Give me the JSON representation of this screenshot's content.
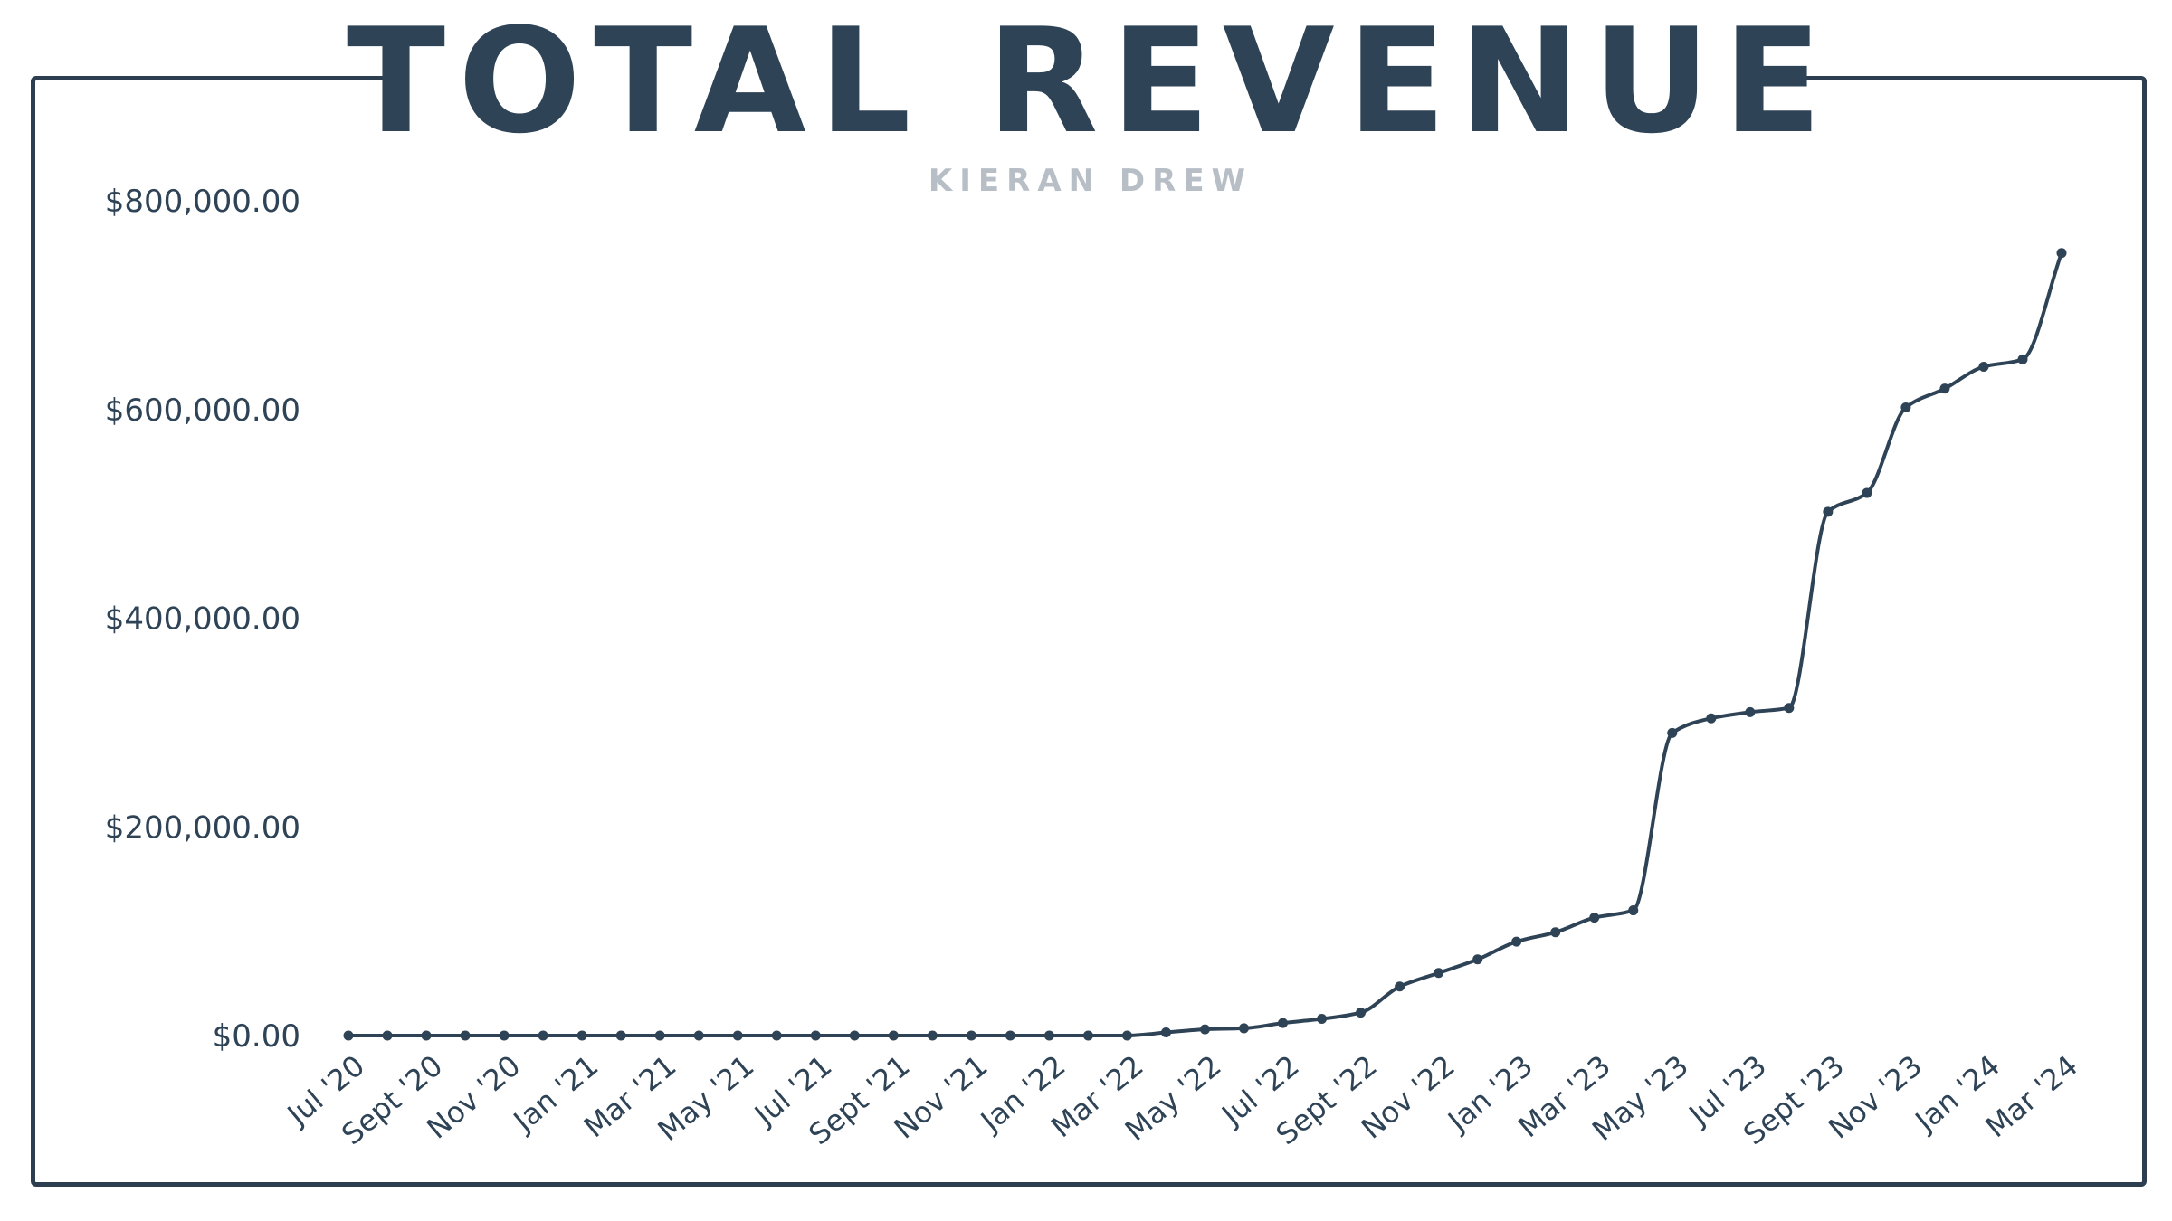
{
  "header": {
    "title": "TOTAL REVENUE",
    "subtitle": "KIERAN DREW"
  },
  "colors": {
    "line": "#2f4356",
    "frame": "#2c3e50",
    "subtitle": "#b7bec6"
  },
  "chart_data": {
    "type": "line",
    "title": "TOTAL REVENUE",
    "subtitle": "KIERAN DREW",
    "xlabel": "",
    "ylabel": "",
    "ylim": [
      0,
      800000
    ],
    "y_ticks": [
      0,
      200000,
      400000,
      600000,
      800000
    ],
    "y_tick_labels": [
      "$0.00",
      "$200,000.00",
      "$400,000.00",
      "$600,000.00",
      "$800,000.00"
    ],
    "grid": false,
    "legend": "none",
    "x": [
      "Jul '20",
      "Aug '20",
      "Sept '20",
      "Oct '20",
      "Nov '20",
      "Dec '20",
      "Jan '21",
      "Feb '21",
      "Mar '21",
      "Apr '21",
      "May '21",
      "Jun '21",
      "Jul '21",
      "Aug '21",
      "Sept '21",
      "Oct '21",
      "Nov '21",
      "Dec '21",
      "Jan '22",
      "Feb '22",
      "Mar '22",
      "Apr '22",
      "May '22",
      "Jun '22",
      "Jul '22",
      "Aug '22",
      "Sept '22",
      "Oct '22",
      "Nov '22",
      "Dec '22",
      "Jan '23",
      "Feb '23",
      "Mar '23",
      "Apr '23",
      "May '23",
      "Jun '23",
      "Jul '23",
      "Aug '23",
      "Sept '23",
      "Oct '23",
      "Nov '23",
      "Dec '23",
      "Jan '24",
      "Feb '24",
      "Mar '24"
    ],
    "x_tick_labels": [
      "Jul '20",
      "Sept '20",
      "Nov '20",
      "Jan '21",
      "Mar '21",
      "May '21",
      "Jul '21",
      "Sept '21",
      "Nov '21",
      "Jan '22",
      "Mar '22",
      "May '22",
      "Jul '22",
      "Sept '22",
      "Nov '22",
      "Jan '23",
      "Mar '23",
      "May '23",
      "Jul '23",
      "Sept '23",
      "Nov '23",
      "Jan '24",
      "Mar '24"
    ],
    "series": [
      {
        "values": [
          0,
          0,
          0,
          0,
          0,
          0,
          0,
          0,
          0,
          0,
          0,
          0,
          0,
          0,
          0,
          0,
          0,
          0,
          0,
          0,
          0,
          3000,
          6000,
          7000,
          12000,
          16000,
          22000,
          47000,
          60000,
          73000,
          90000,
          99000,
          113000,
          120000,
          290000,
          304000,
          310000,
          314000,
          502000,
          520000,
          602000,
          620000,
          641000,
          648000,
          750000
        ]
      }
    ]
  }
}
